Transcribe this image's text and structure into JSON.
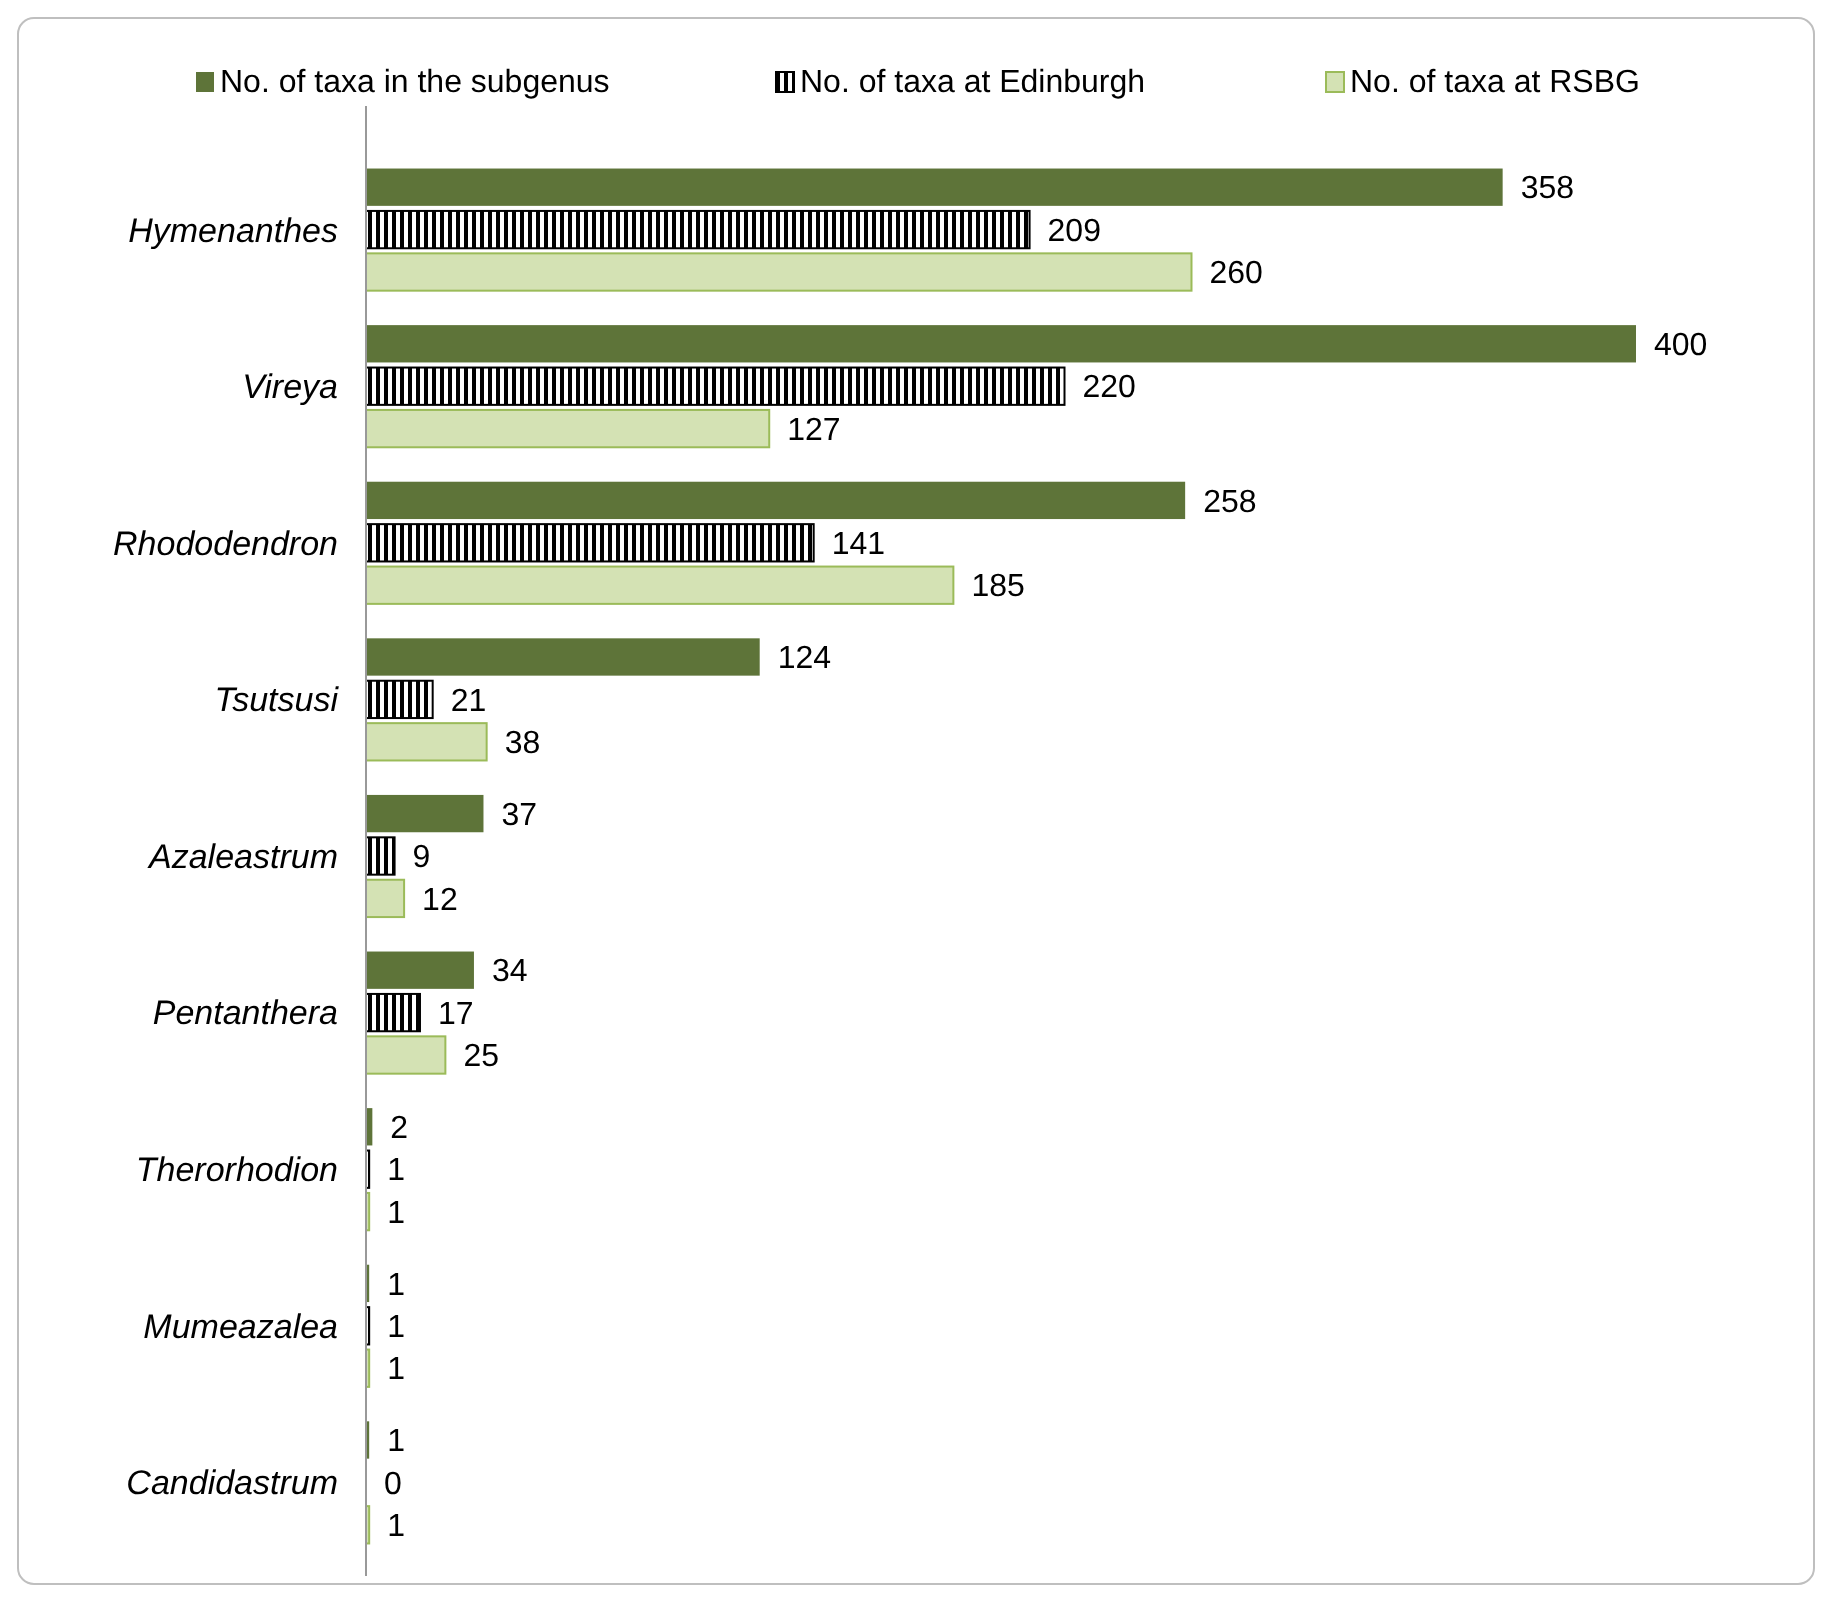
{
  "chart_data": {
    "type": "bar",
    "orientation": "horizontal",
    "categories": [
      "Hymenanthes",
      "Vireya",
      "Rhododendron",
      "Tsutsusi",
      "Azaleastrum",
      "Pentanthera",
      "Therorhodion",
      "Mumeazalea",
      "Candidastrum"
    ],
    "series": [
      {
        "name": "No. of taxa in the subgenus",
        "color": "#5e7439",
        "values": [
          358,
          400,
          258,
          124,
          37,
          34,
          2,
          1,
          1
        ]
      },
      {
        "name": "No. of taxa at Edinburgh",
        "color": "#000000",
        "values": [
          209,
          220,
          141,
          21,
          9,
          17,
          1,
          1,
          0
        ]
      },
      {
        "name": "No. of taxa at RSBG",
        "color": "#d4e2b4",
        "values": [
          260,
          127,
          185,
          38,
          12,
          25,
          1,
          1,
          1
        ]
      }
    ],
    "data_labels": true,
    "legend": "top",
    "grid": false
  }
}
